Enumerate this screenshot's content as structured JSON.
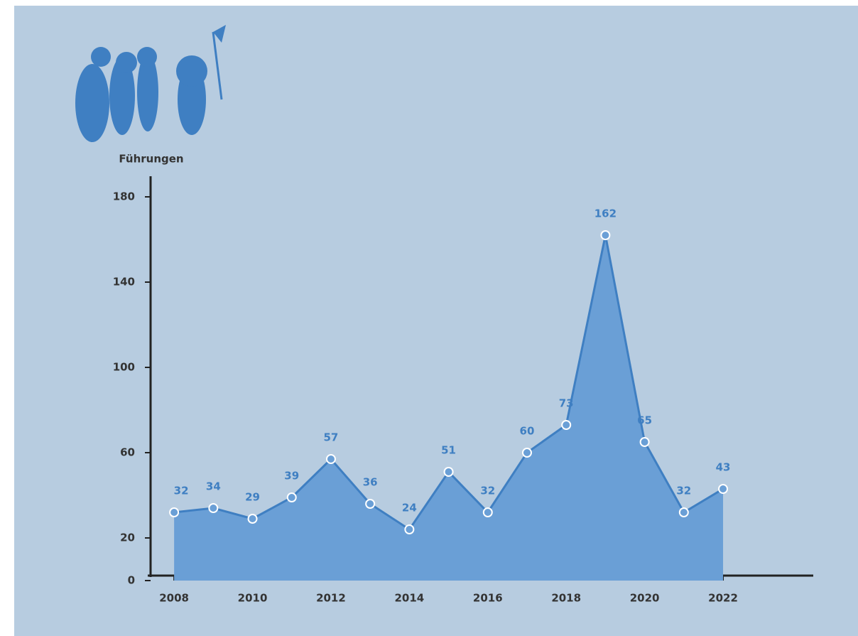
{
  "chart_data": {
    "type": "area",
    "title": "Führungen",
    "x": [
      2008,
      2009,
      2010,
      2011,
      2012,
      2013,
      2014,
      2015,
      2016,
      2017,
      2018,
      2019,
      2020,
      2021,
      2022
    ],
    "values": [
      32,
      34,
      29,
      39,
      57,
      36,
      24,
      51,
      32,
      60,
      73,
      162,
      65,
      32,
      43
    ],
    "color": "#6a9fd6",
    "line_color": "#3f7fc2",
    "xlim": [
      2007.4,
      2024.3
    ],
    "xticks": [
      2008,
      2010,
      2012,
      2014,
      2016,
      2018,
      2020,
      2022
    ],
    "ylim": [
      0,
      190
    ],
    "yticks": [
      0,
      20,
      60,
      100,
      140,
      180
    ],
    "grid": false
  }
}
